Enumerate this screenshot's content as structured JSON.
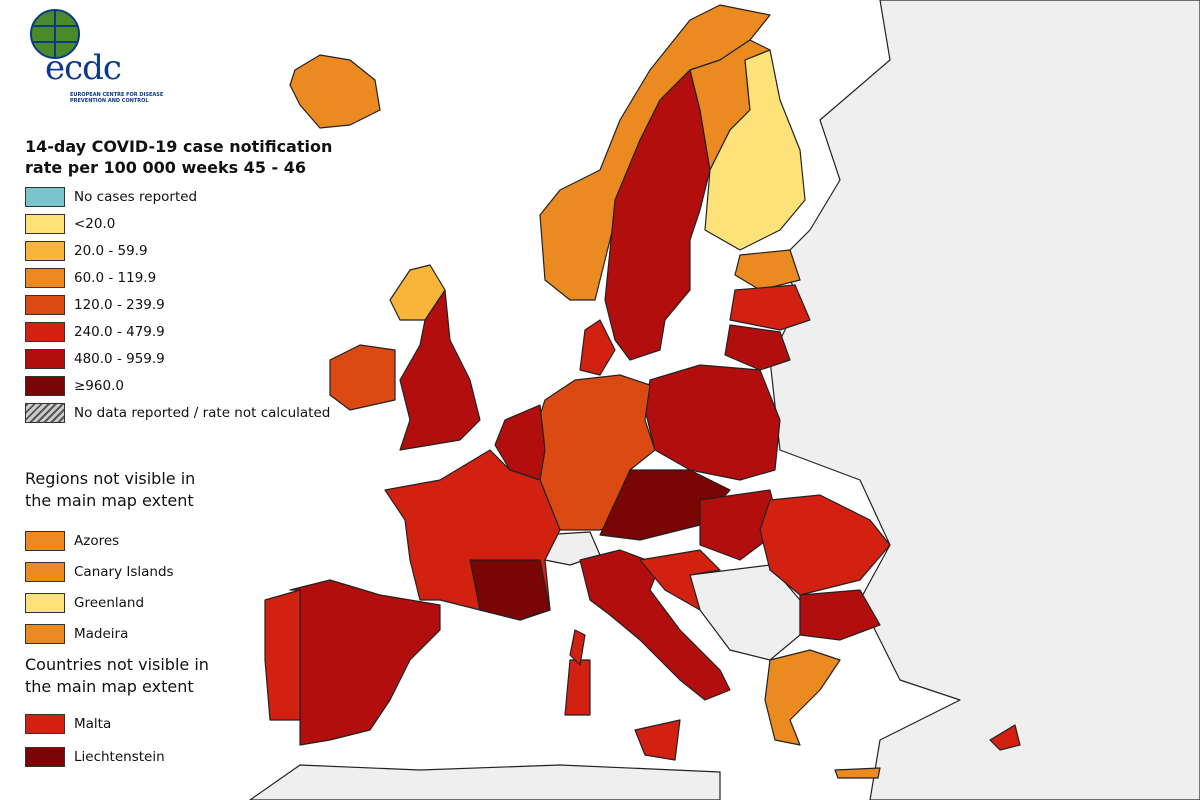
{
  "logo": {
    "text": "ecdc",
    "subtitle": "EUROPEAN CENTRE FOR DISEASE PREVENTION AND CONTROL"
  },
  "legend": {
    "title": "14-day COVID-19 case notification rate per 100 000 weeks 45 - 46",
    "items": [
      {
        "label": "No cases reported",
        "color": "#7bc4ce"
      },
      {
        "label": "<20.0",
        "color": "#fde27a"
      },
      {
        "label": "20.0 - 59.9",
        "color": "#f9b53a"
      },
      {
        "label": "60.0 - 119.9",
        "color": "#ec8a22"
      },
      {
        "label": "120.0 - 239.9",
        "color": "#dc4a14"
      },
      {
        "label": "240.0 - 479.9",
        "color": "#d22011"
      },
      {
        "label": "480.0 - 959.9",
        "color": "#b20e0e"
      },
      {
        "label": "≥960.0",
        "color": "#7a0505"
      },
      {
        "label": "No data reported / rate not calculated",
        "color": "#bbbbbb",
        "style": "hatched"
      }
    ]
  },
  "regions": {
    "title": "Regions not visible in the main map extent",
    "items": [
      {
        "label": "Azores",
        "color": "#ec8a22"
      },
      {
        "label": "Canary Islands",
        "color": "#ec8a22"
      },
      {
        "label": "Greenland",
        "color": "#fde27a"
      },
      {
        "label": "Madeira",
        "color": "#ec8a22"
      }
    ]
  },
  "countries": {
    "title": "Countries not visible in the main map extent",
    "items": [
      {
        "label": "Malta",
        "color": "#d22011"
      },
      {
        "label": "Liechtenstein",
        "color": "#7a0505"
      }
    ]
  }
}
